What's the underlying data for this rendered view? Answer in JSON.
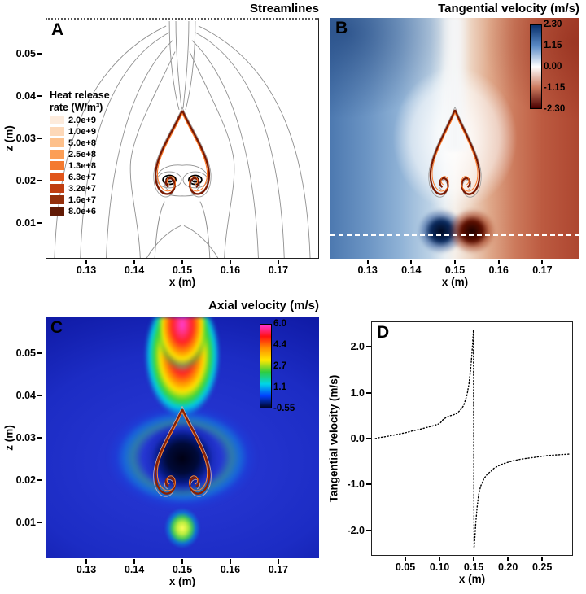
{
  "figure": {
    "background": "#ffffff"
  },
  "panels": {
    "a": {
      "letter": "A",
      "title": "Streamlines",
      "xlabel": "x (m)",
      "ylabel": "z (m)",
      "xlim": [
        0.1215,
        0.1785
      ],
      "zlim": [
        0.0015,
        0.0585
      ],
      "x_tick_values": [
        0.13,
        0.14,
        0.15,
        0.16,
        0.17
      ],
      "x_tick_labels": [
        "0.13",
        "0.14",
        "0.15",
        "0.16",
        "0.17"
      ],
      "y_tick_values": [
        0.01,
        0.02,
        0.03,
        0.04,
        0.05
      ],
      "y_tick_labels": [
        "0.01",
        "0.02",
        "0.03",
        "0.04",
        "0.05"
      ],
      "legend": {
        "title": [
          "Heat release",
          "rate (W/m³)"
        ],
        "entries": [
          {
            "label": "2.0e+9",
            "color": "#fdebdc"
          },
          {
            "label": "1.0e+9",
            "color": "#fdd8b8"
          },
          {
            "label": "5.0e+8",
            "color": "#fdc08b"
          },
          {
            "label": "2.5e+8",
            "color": "#fc9e56"
          },
          {
            "label": "1.3e+8",
            "color": "#f47a2f"
          },
          {
            "label": "6.3e+7",
            "color": "#e0551b"
          },
          {
            "label": "3.2e+7",
            "color": "#c03d10"
          },
          {
            "label": "1.6e+7",
            "color": "#942f0b"
          },
          {
            "label": "8.0e+6",
            "color": "#621a05"
          }
        ]
      }
    },
    "b": {
      "letter": "B",
      "title": "Tangential velocity (m/s)",
      "xlabel": "x (m)",
      "xlim": [
        0.1215,
        0.1785
      ],
      "x_tick_values": [
        0.13,
        0.14,
        0.15,
        0.16,
        0.17
      ],
      "x_tick_labels": [
        "0.13",
        "0.14",
        "0.15",
        "0.16",
        "0.17"
      ],
      "colorbar": {
        "tick_labels": [
          "2.30",
          "1.15",
          "0.00",
          "-1.15",
          "-2.30"
        ],
        "colors_top_to_bottom": [
          "#08306b",
          "#5a8ac6",
          "#ffffff",
          "#cc7a5e",
          "#4a0000"
        ]
      }
    },
    "c": {
      "letter": "C",
      "title": "Axial velocity (m/s)",
      "xlabel": "x (m)",
      "ylabel": "z (m)",
      "xlim": [
        0.1215,
        0.1785
      ],
      "zlim": [
        0.0015,
        0.0585
      ],
      "x_tick_values": [
        0.13,
        0.14,
        0.15,
        0.16,
        0.17
      ],
      "x_tick_labels": [
        "0.13",
        "0.14",
        "0.15",
        "0.16",
        "0.17"
      ],
      "y_tick_values": [
        0.01,
        0.02,
        0.03,
        0.04,
        0.05
      ],
      "y_tick_labels": [
        "0.01",
        "0.02",
        "0.03",
        "0.04",
        "0.05"
      ],
      "colorbar": {
        "tick_labels": [
          "6.0",
          "4.4",
          "2.7",
          "1.1",
          "-0.55"
        ],
        "colors_top_to_bottom": [
          "#ff35d6",
          "#ff1010",
          "#ff9000",
          "#ffe800",
          "#2ecc40",
          "#00d5e8",
          "#0040ff",
          "#000428"
        ]
      }
    },
    "d": {
      "letter": "D",
      "xlabel": "x (m)",
      "ylabel": "Tangential velocity (m/s)",
      "xlim": [
        0.0,
        0.295
      ],
      "ylim": [
        -2.55,
        2.55
      ],
      "x_tick_values": [
        0.05,
        0.1,
        0.15,
        0.2,
        0.25
      ],
      "x_tick_labels": [
        "0.05",
        "0.10",
        "0.15",
        "0.20",
        "0.25"
      ],
      "y_tick_values": [
        -2.0,
        -1.0,
        0.0,
        1.0,
        2.0
      ],
      "y_tick_labels": [
        "-2.0",
        "-1.0",
        "0.0",
        "1.0",
        "2.0"
      ]
    }
  },
  "chart_data": [
    {
      "panel": "A",
      "type": "heatmap",
      "subtype": "streamlines-with-flame-contours",
      "title": "Streamlines",
      "xlabel": "x (m)",
      "ylabel": "z (m)",
      "xlim": [
        0.1215,
        0.1785
      ],
      "ylim": [
        0.0015,
        0.0585
      ],
      "x_ticks": [
        0.13,
        0.14,
        0.15,
        0.16,
        0.17
      ],
      "y_ticks": [
        0.01,
        0.02,
        0.03,
        0.04,
        0.05
      ],
      "legend_title": "Heat release rate (W/m³)",
      "contour_levels_W_per_m3": [
        2000000000.0,
        1000000000.0,
        500000000.0,
        250000000.0,
        130000000.0,
        63000000.0,
        32000000.0,
        16000000.0,
        8000000.0
      ],
      "features": [
        "gray streamlines converge from the sides into a narrow vertical plume along x = 0.15 m",
        "counter-rotating vortex pair (closed spiral streamlines) inside the flame base near x = 0.145 and 0.155 m, z = 0.018 m",
        "teardrop-shaped heat-release contour (flame) centered on x = 0.15 m spanning z = 0.016 to 0.035 m"
      ]
    },
    {
      "panel": "B",
      "type": "heatmap",
      "title": "Tangential velocity (m/s)",
      "xlabel": "x (m)",
      "xlim": [
        0.1215,
        0.1785
      ],
      "ylim": [
        0.0015,
        0.0585
      ],
      "x_ticks": [
        0.13,
        0.14,
        0.15,
        0.16,
        0.17
      ],
      "colorbar": {
        "min": -2.3,
        "max": 2.3,
        "ticks": [
          2.3,
          1.15,
          0.0,
          -1.15,
          -2.3
        ],
        "colormap": "blue-white-red"
      },
      "features": [
        "positive tangential velocity (blue) for x < 0.15 m, negative (red) for x > 0.15 m",
        "near-zero white band along the centerline and around the flame contour",
        "velocity extrema (about 2.3 m/s magnitude) near the bottom adjacent to the centerline",
        "horizontal white dashed sampling line near z = 0.007 m (profile shown in panel D)"
      ]
    },
    {
      "panel": "C",
      "type": "heatmap",
      "title": "Axial velocity (m/s)",
      "xlabel": "x (m)",
      "ylabel": "z (m)",
      "xlim": [
        0.1215,
        0.1785
      ],
      "ylim": [
        0.0015,
        0.0585
      ],
      "x_ticks": [
        0.13,
        0.14,
        0.15,
        0.16,
        0.17
      ],
      "y_ticks": [
        0.01,
        0.02,
        0.03,
        0.04,
        0.05
      ],
      "colorbar": {
        "min": -0.55,
        "max": 6.0,
        "ticks": [
          6.0,
          4.4,
          2.7,
          1.1,
          -0.55
        ],
        "colormap": "rainbow"
      },
      "features": [
        "high-velocity plume (about 6 m/s, magenta core) along the centerline above the flame tip",
        "near-zero / negative velocity (dark region) inside the flame teardrop",
        "small localized jet at the centerline near z = 0.007 m",
        "quiescent blue background around 0-1 m/s"
      ]
    },
    {
      "panel": "D",
      "type": "line",
      "xlabel": "x (m)",
      "ylabel": "Tangential velocity (m/s)",
      "xlim": [
        0.0,
        0.295
      ],
      "ylim": [
        -2.55,
        2.55
      ],
      "x_ticks": [
        0.05,
        0.1,
        0.15,
        0.2,
        0.25
      ],
      "y_ticks": [
        -2.0,
        -1.0,
        0.0,
        1.0,
        2.0
      ],
      "series": [
        {
          "name": "Tangential velocity along the dashed line of panel B",
          "style": "dotted",
          "x": [
            0.005,
            0.01,
            0.02,
            0.03,
            0.04,
            0.05,
            0.06,
            0.07,
            0.08,
            0.09,
            0.1,
            0.105,
            0.11,
            0.115,
            0.12,
            0.125,
            0.13,
            0.135,
            0.14,
            0.143,
            0.146,
            0.148,
            0.149,
            0.1495,
            0.1505,
            0.151,
            0.152,
            0.153,
            0.155,
            0.157,
            0.16,
            0.165,
            0.17,
            0.175,
            0.18,
            0.19,
            0.2,
            0.21,
            0.22,
            0.23,
            0.24,
            0.25,
            0.26,
            0.27,
            0.28,
            0.29
          ],
          "y": [
            0.0,
            0.02,
            0.04,
            0.07,
            0.1,
            0.13,
            0.17,
            0.2,
            0.24,
            0.28,
            0.33,
            0.42,
            0.47,
            0.5,
            0.52,
            0.55,
            0.62,
            0.72,
            0.95,
            1.2,
            1.6,
            2.0,
            2.25,
            2.38,
            -2.4,
            -2.3,
            -2.1,
            -1.85,
            -1.5,
            -1.25,
            -1.05,
            -0.88,
            -0.78,
            -0.72,
            -0.65,
            -0.57,
            -0.52,
            -0.48,
            -0.45,
            -0.43,
            -0.41,
            -0.39,
            -0.37,
            -0.36,
            -0.35,
            -0.34
          ]
        }
      ]
    }
  ]
}
